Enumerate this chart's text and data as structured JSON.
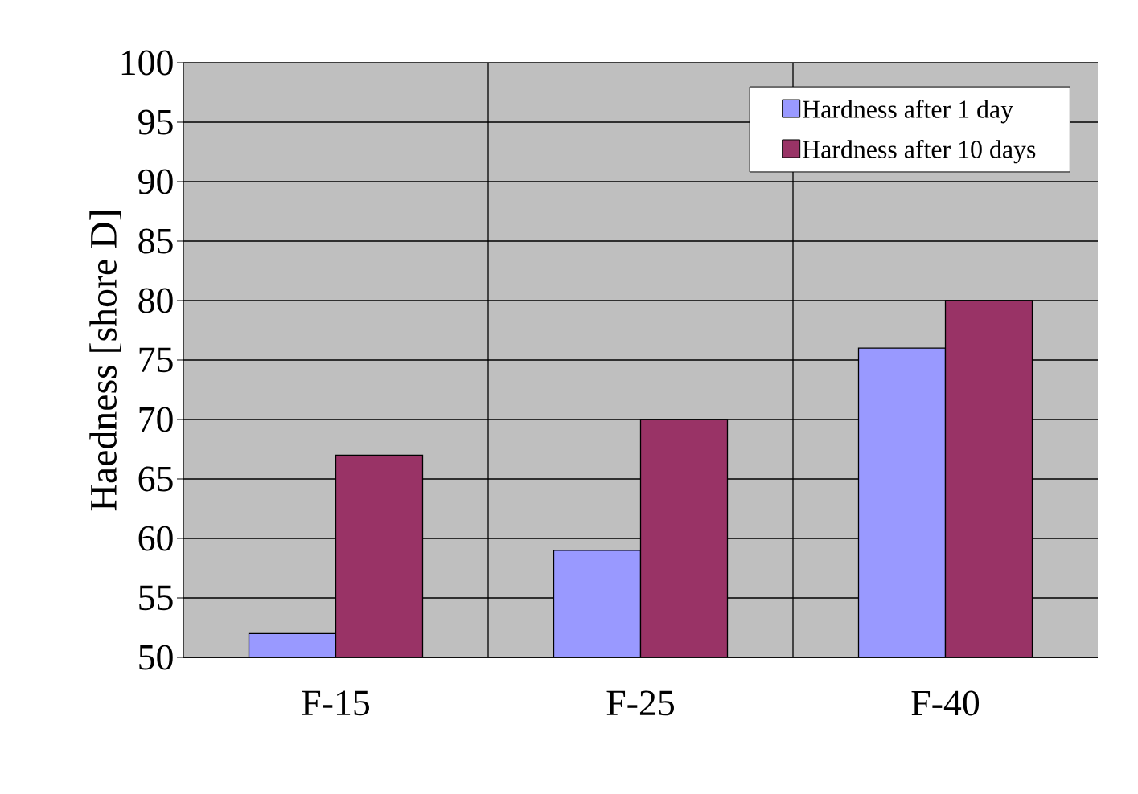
{
  "chart_data": {
    "type": "bar",
    "ylabel": "Haedness [shore D]",
    "categories": [
      "F-15",
      "F-25",
      "F-40"
    ],
    "series": [
      {
        "name": "Hardness after 1 day",
        "color": "#9999ff",
        "values": [
          52,
          59,
          76
        ]
      },
      {
        "name": "Hardness after 10 days",
        "color": "#993366",
        "values": [
          67,
          70,
          80
        ]
      }
    ],
    "ylim": [
      50,
      100
    ],
    "yticks": [
      50,
      55,
      60,
      65,
      70,
      75,
      80,
      85,
      90,
      95,
      100
    ],
    "grid": true,
    "legend": "top right"
  }
}
